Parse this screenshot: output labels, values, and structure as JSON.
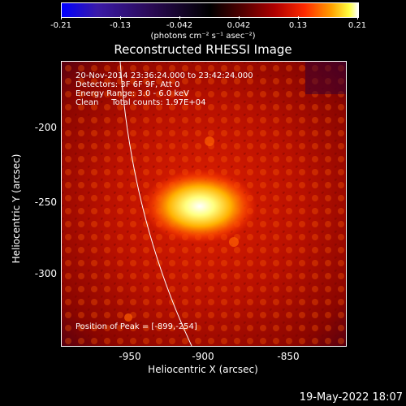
{
  "colorbar": {
    "ticks": [
      "-0.21",
      "-0.13",
      "-0.042",
      "0.042",
      "0.13",
      "0.21"
    ],
    "units": "(photons cm⁻² s⁻¹ asec⁻²)"
  },
  "title": "Reconstructed RHESSI Image",
  "info": {
    "time_range": "20-Nov-2014 23:36:24.000 to 23:42:24.000",
    "detectors": "Detectors: 3F 6F 9F, Att 0",
    "energy": "Energy Range: 3.0 - 6.0 keV",
    "clean": "Clean     Total counts: 1.97E+04",
    "peak": "Position of Peak = [-899,-254]"
  },
  "axes": {
    "xlabel": "Heliocentric X (arcsec)",
    "ylabel": "Heliocentric Y (arcsec)",
    "xticks": [
      "-950",
      "-900",
      "-850"
    ],
    "yticks": [
      "-200",
      "-250",
      "-300"
    ]
  },
  "timestamp": "19-May-2022 18:07"
}
